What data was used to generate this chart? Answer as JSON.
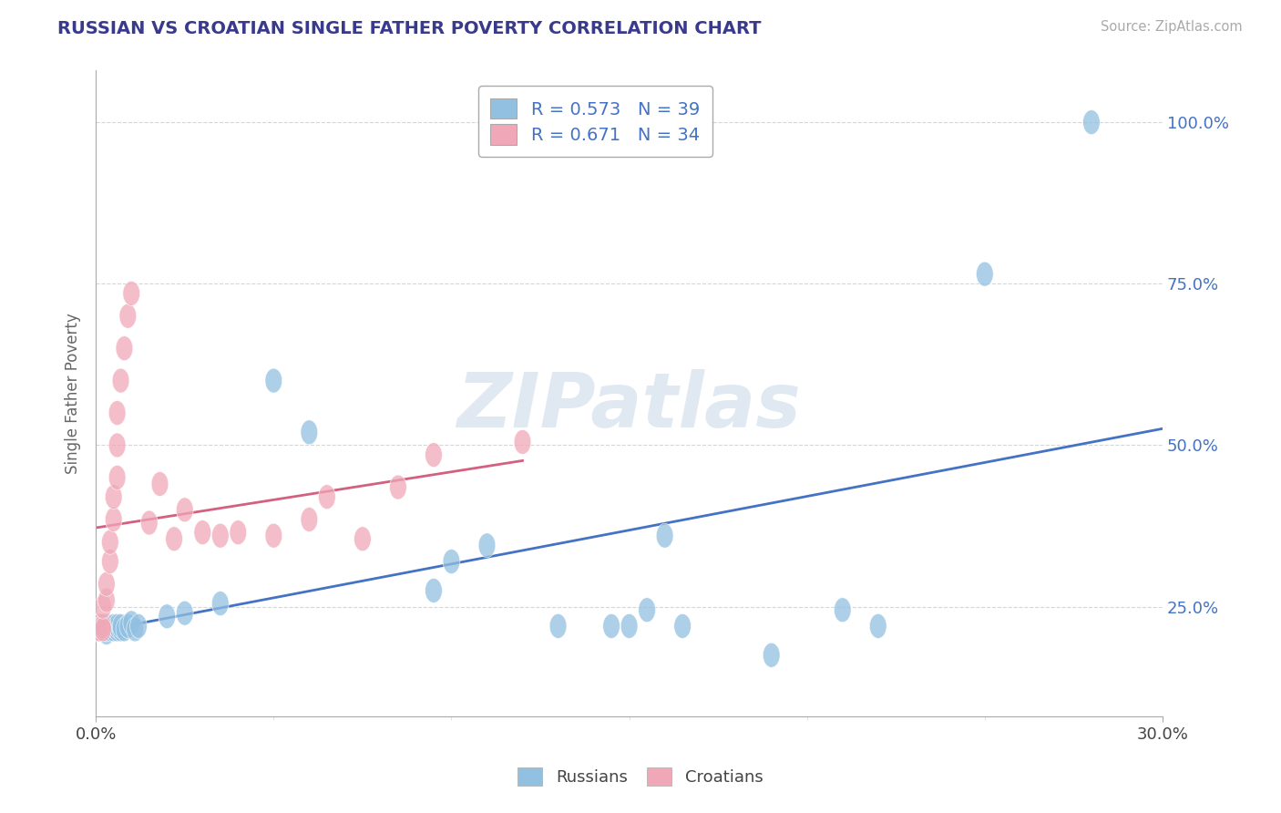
{
  "title": "RUSSIAN VS CROATIAN SINGLE FATHER POVERTY CORRELATION CHART",
  "source_text": "Source: ZipAtlas.com",
  "ylabel": "Single Father Poverty",
  "xlim": [
    0.0,
    0.3
  ],
  "ylim": [
    0.08,
    1.08
  ],
  "yticks": [
    0.25,
    0.5,
    0.75,
    1.0
  ],
  "ytick_labels": [
    "25.0%",
    "50.0%",
    "75.0%",
    "100.0%"
  ],
  "watermark": "ZIPatlas",
  "blue_color": "#92c0e0",
  "pink_color": "#f0a8b8",
  "blue_line_color": "#4472c4",
  "pink_line_color": "#d46080",
  "title_color": "#3a3a8c",
  "legend_r_blue": "R = 0.573   N = 39",
  "legend_r_pink": "R = 0.671   N = 34",
  "russians_x": [
    0.0,
    0.001,
    0.001,
    0.002,
    0.002,
    0.002,
    0.003,
    0.003,
    0.003,
    0.004,
    0.004,
    0.005,
    0.005,
    0.006,
    0.006,
    0.007,
    0.007,
    0.008,
    0.009,
    0.01,
    0.012,
    0.015,
    0.02,
    0.025,
    0.03,
    0.055,
    0.06,
    0.095,
    0.1,
    0.11,
    0.12,
    0.145,
    0.15,
    0.155,
    0.16,
    0.19,
    0.21,
    0.25,
    0.28
  ],
  "russians_y": [
    0.2,
    0.22,
    0.21,
    0.215,
    0.22,
    0.21,
    0.215,
    0.2,
    0.22,
    0.215,
    0.22,
    0.215,
    0.22,
    0.22,
    0.215,
    0.215,
    0.22,
    0.22,
    0.22,
    0.225,
    0.22,
    0.225,
    0.23,
    0.235,
    0.235,
    0.6,
    0.52,
    0.27,
    0.315,
    0.345,
    0.22,
    0.22,
    0.22,
    0.245,
    0.36,
    0.175,
    0.24,
    0.765,
    1.0
  ],
  "croatians_x": [
    0.0,
    0.001,
    0.001,
    0.001,
    0.002,
    0.002,
    0.002,
    0.003,
    0.003,
    0.004,
    0.004,
    0.005,
    0.005,
    0.005,
    0.006,
    0.006,
    0.007,
    0.008,
    0.009,
    0.01,
    0.015,
    0.018,
    0.022,
    0.025,
    0.03,
    0.035,
    0.04,
    0.05,
    0.055,
    0.065,
    0.08,
    0.085,
    0.095,
    0.12
  ],
  "croatians_y": [
    0.2,
    0.215,
    0.22,
    0.215,
    0.22,
    0.215,
    0.24,
    0.24,
    0.26,
    0.28,
    0.32,
    0.36,
    0.38,
    0.42,
    0.44,
    0.5,
    0.56,
    0.6,
    0.65,
    0.68,
    0.38,
    0.44,
    0.35,
    0.4,
    0.36,
    0.36,
    0.36,
    0.355,
    0.4,
    0.38,
    0.35,
    0.42,
    0.48,
    0.5
  ]
}
